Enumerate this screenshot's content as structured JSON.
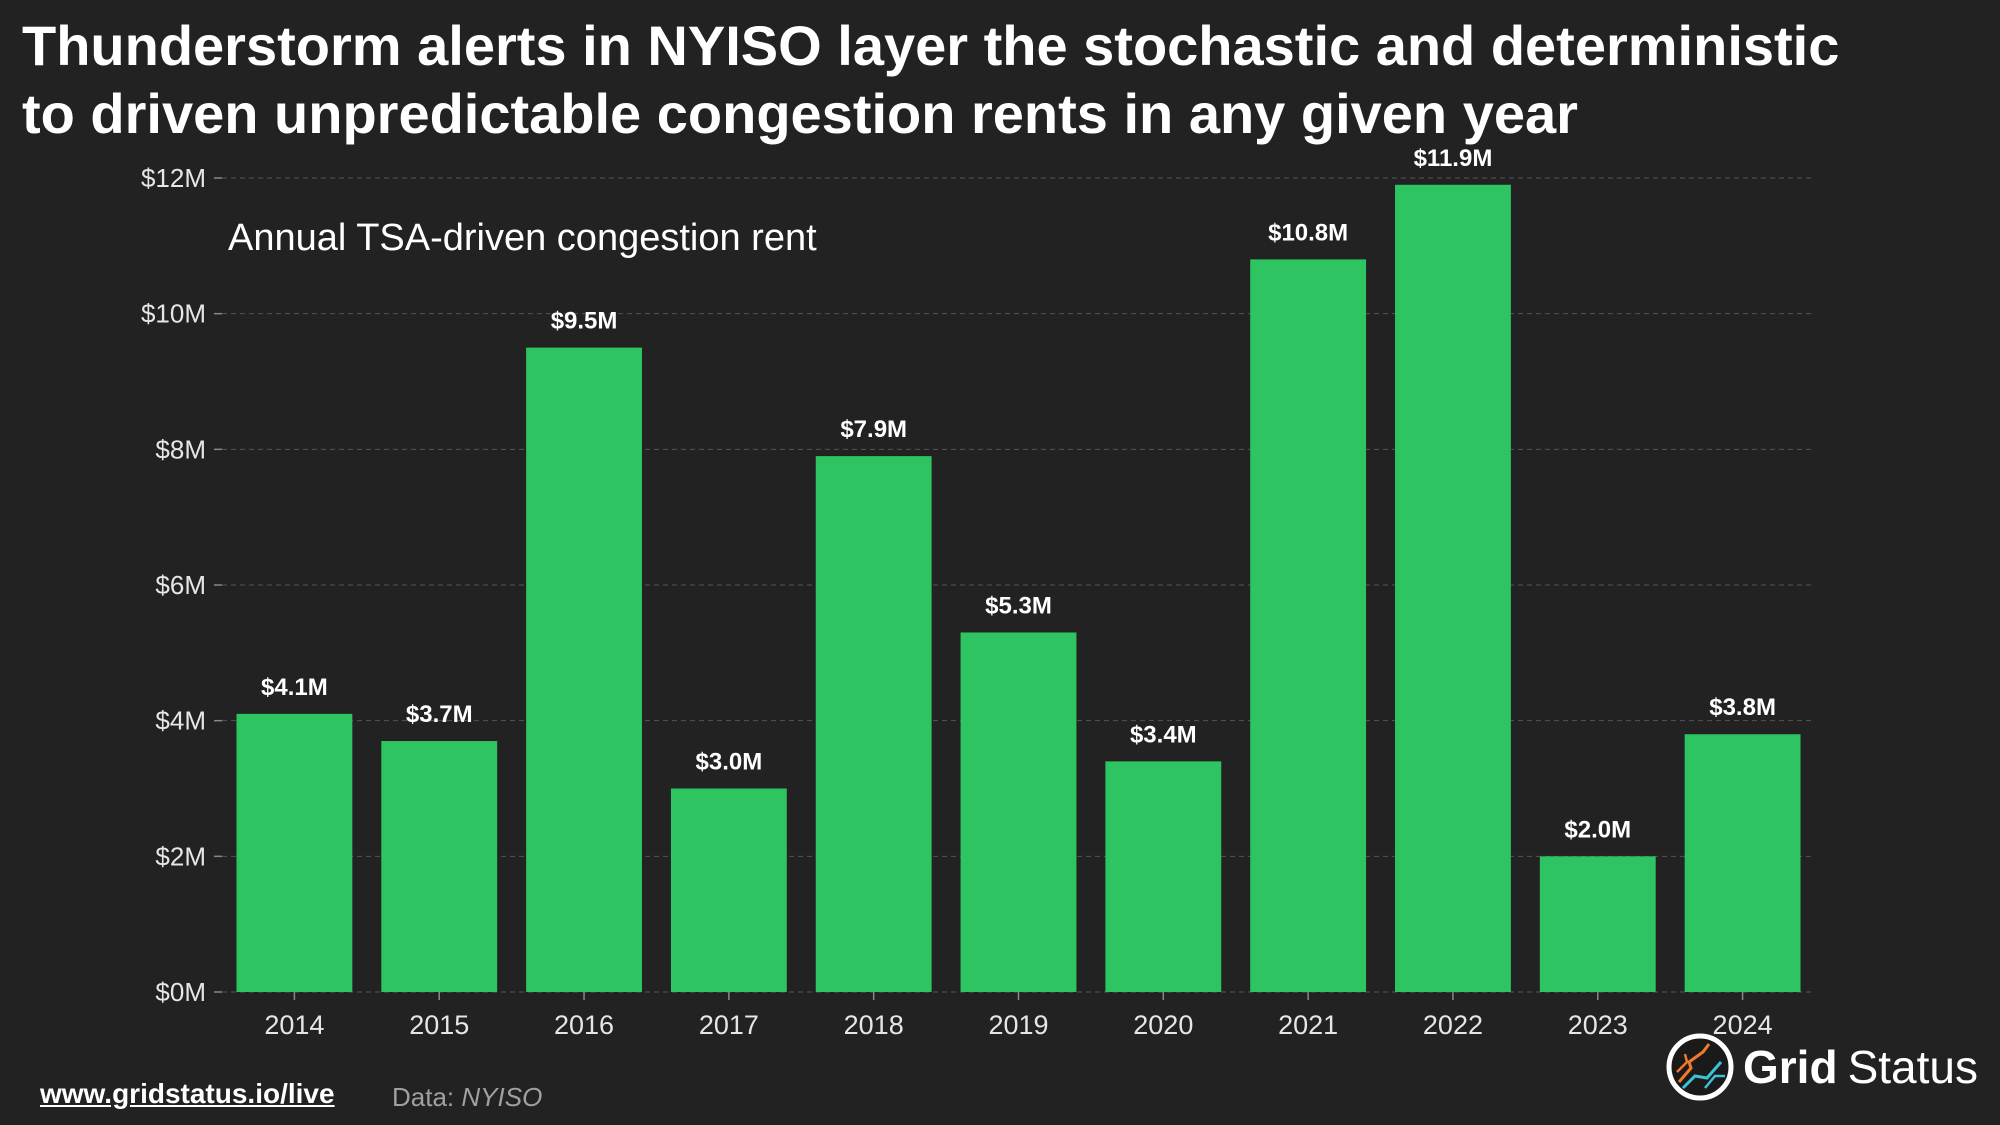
{
  "title_lines": [
    "Thunderstorm alerts in NYISO layer the stochastic and deterministic",
    "to driven unpredictable congestion rents in any given year"
  ],
  "chart_data": {
    "type": "bar",
    "subtitle": "Annual TSA-driven congestion rent",
    "categories": [
      "2014",
      "2015",
      "2016",
      "2017",
      "2018",
      "2019",
      "2020",
      "2021",
      "2022",
      "2023",
      "2024"
    ],
    "values": [
      4.1,
      3.7,
      9.5,
      3.0,
      7.9,
      5.3,
      3.4,
      10.8,
      11.9,
      2.0,
      3.8
    ],
    "value_labels": [
      "$4.1M",
      "$3.7M",
      "$9.5M",
      "$3.0M",
      "$7.9M",
      "$5.3M",
      "$3.4M",
      "$10.8M",
      "$11.9M",
      "$2.0M",
      "$3.8M"
    ],
    "units": "$M",
    "ylim": [
      0,
      12
    ],
    "yticks": [
      0,
      2,
      4,
      6,
      8,
      10,
      12
    ],
    "ytick_labels": [
      "$0M",
      "$2M",
      "$4M",
      "$6M",
      "$8M",
      "$10M",
      "$12M"
    ],
    "xlabel": "",
    "ylabel": "",
    "grid": true,
    "bar_color": "#2ec461",
    "background_color": "#222222",
    "grid_color": "#555555"
  },
  "footer": {
    "link": "www.gridstatus.io/live",
    "source_label": "Data:",
    "source_name": "NYISO"
  },
  "logo": {
    "icon": "grid-status-logo-icon",
    "text_bold": "Grid",
    "text_regular": "Status"
  }
}
